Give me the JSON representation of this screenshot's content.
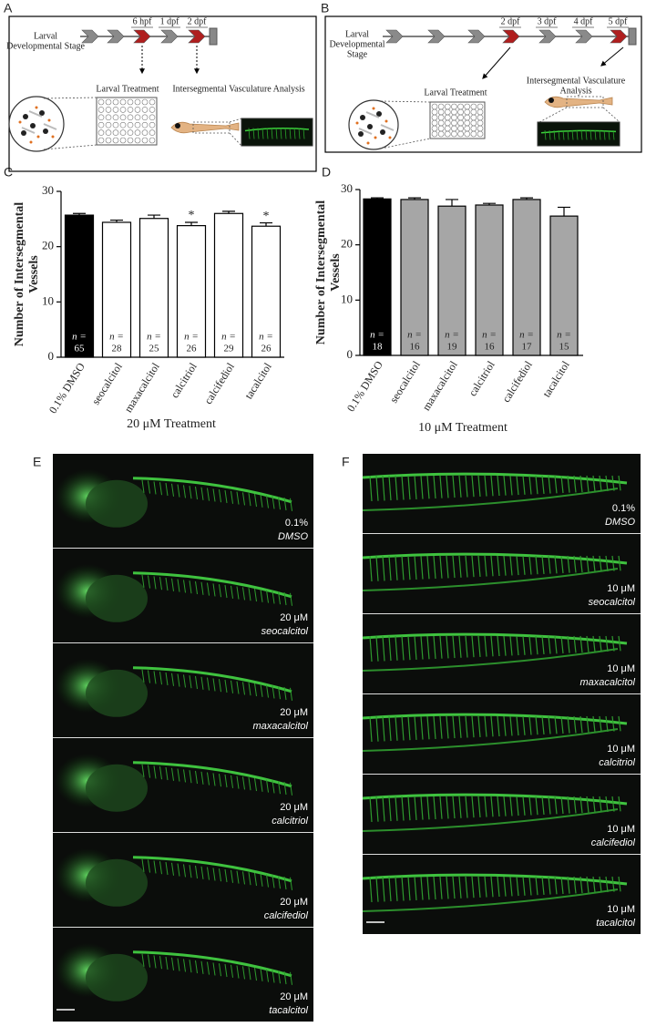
{
  "panel_labels": [
    "A",
    "B",
    "C",
    "D",
    "E",
    "F"
  ],
  "diagram_a": {
    "stage_label": [
      "Larval",
      "Developmental Stage"
    ],
    "timepoints": [
      "6 hpf",
      "1 dpf",
      "2 dpf"
    ],
    "treatment_label": "Larval Treatment",
    "analysis_label": [
      "Intersegmental Vasculature Analysis"
    ]
  },
  "diagram_b": {
    "stage_label": [
      "Larval",
      "Developmental",
      "Stage"
    ],
    "timepoints": [
      "2 dpf",
      "3 dpf",
      "4 dpf",
      "5 dpf"
    ],
    "treatment_label": "Larval Treatment",
    "analysis_label": [
      "Intersegmental Vasculature",
      "Analysis"
    ]
  },
  "chart_data": [
    {
      "type": "bar",
      "x_label": "20 μM Treatment",
      "y_label": [
        "Number of Intersegmental",
        "Vessels"
      ],
      "categories": [
        "0.1% DMSO",
        "seocalcitol",
        "maxacalcitol",
        "calcitriol",
        "calcifediol",
        "tacalcitol"
      ],
      "values": [
        25.7,
        24.4,
        25.1,
        23.8,
        26.0,
        23.7
      ],
      "errors": [
        0.3,
        0.4,
        0.6,
        0.6,
        0.4,
        0.6
      ],
      "colors": [
        "#000000",
        "#ffffff",
        "#ffffff",
        "#ffffff",
        "#ffffff",
        "#ffffff"
      ],
      "n_prefix": "n =",
      "n": [
        65,
        28,
        25,
        26,
        29,
        26
      ],
      "significance": [
        null,
        null,
        null,
        "*",
        null,
        "*"
      ],
      "ylim": [
        0,
        30
      ],
      "yticks": [
        0,
        10,
        20,
        30
      ]
    },
    {
      "type": "bar",
      "x_label": "10 μM Treatment",
      "y_label": [
        "Number of Intersegmental",
        "Vessels"
      ],
      "categories": [
        "0.1% DMSO",
        "seocalcitol",
        "maxacalcitol",
        "calcitriol",
        "calcifediol",
        "tacalcitol"
      ],
      "values": [
        28.3,
        28.2,
        27.0,
        27.2,
        28.2,
        25.2
      ],
      "errors": [
        0.2,
        0.3,
        1.2,
        0.3,
        0.3,
        1.6
      ],
      "colors": [
        "#000000",
        "#a6a6a6",
        "#a6a6a6",
        "#a6a6a6",
        "#a6a6a6",
        "#a6a6a6"
      ],
      "n_prefix": "n =",
      "n": [
        18,
        16,
        19,
        16,
        17,
        15
      ],
      "ylim": [
        0,
        30
      ],
      "yticks": [
        0,
        10,
        20,
        30
      ]
    }
  ],
  "image_panels": [
    [
      {
        "dose": "0.1%",
        "compound": "DMSO"
      },
      {
        "dose": "20 μM",
        "compound": "seocalcitol"
      },
      {
        "dose": "20 μM",
        "compound": "maxacalcitol"
      },
      {
        "dose": "20 μM",
        "compound": "calcitriol"
      },
      {
        "dose": "20 μM",
        "compound": "calcifediol"
      },
      {
        "dose": "20 μM",
        "compound": "tacalcitol"
      }
    ],
    [
      {
        "dose": "0.1%",
        "compound": "DMSO"
      },
      {
        "dose": "10 μM",
        "compound": "seocalcitol"
      },
      {
        "dose": "10 μM",
        "compound": "maxacalcitol"
      },
      {
        "dose": "10 μM",
        "compound": "calcitriol"
      },
      {
        "dose": "10 μM",
        "compound": "calcifediol"
      },
      {
        "dose": "10 μM",
        "compound": "tacalcitol"
      }
    ]
  ]
}
